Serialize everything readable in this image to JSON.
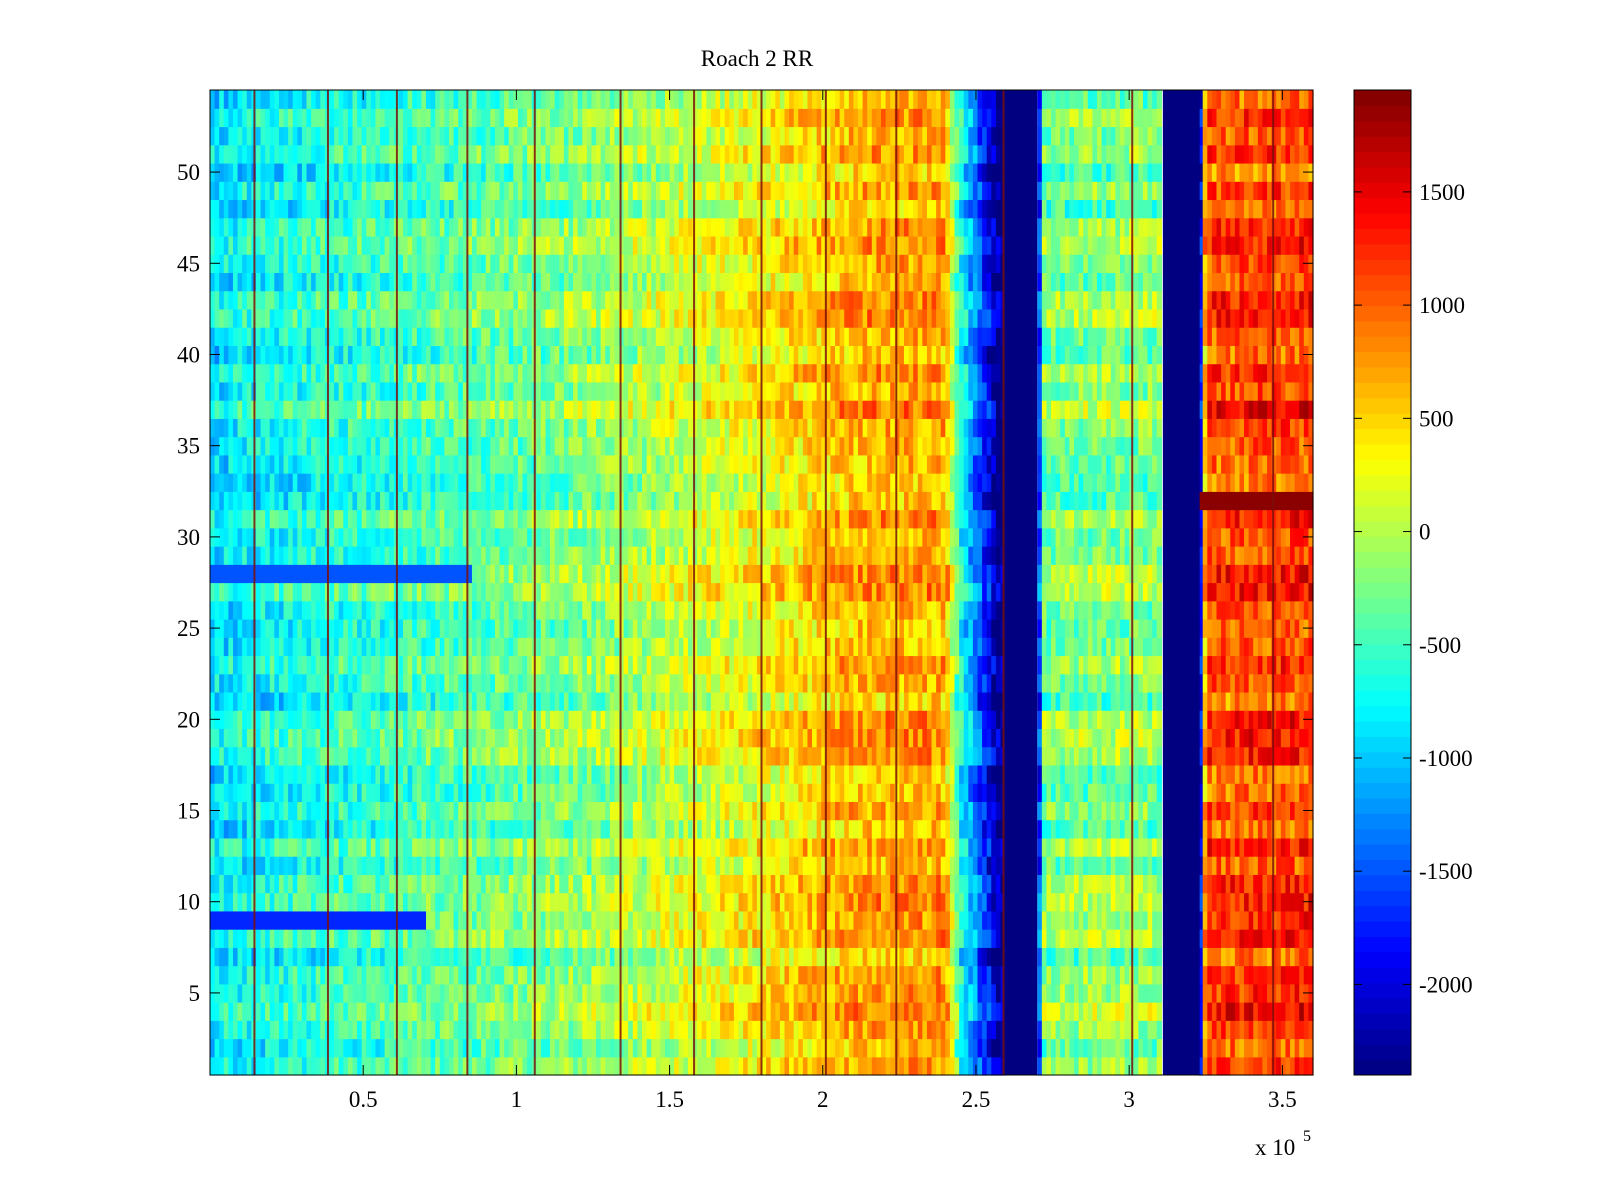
{
  "chart_data": {
    "type": "heatmap",
    "title": "Roach 2 RR",
    "xlabel": "",
    "ylabel": "",
    "x_exponent_label": "x 10",
    "x_exponent_power": "5",
    "xlim": [
      0,
      3.6
    ],
    "ylim": [
      0.5,
      54.5
    ],
    "x_ticks": [
      0.5,
      1,
      1.5,
      2,
      2.5,
      3,
      3.5
    ],
    "x_tick_labels": [
      "0.5",
      "1",
      "1.5",
      "2",
      "2.5",
      "3",
      "3.5"
    ],
    "y_ticks": [
      5,
      10,
      15,
      20,
      25,
      30,
      35,
      40,
      45,
      50
    ],
    "y_tick_labels": [
      "5",
      "10",
      "15",
      "20",
      "25",
      "30",
      "35",
      "40",
      "45",
      "50"
    ],
    "rows": 54,
    "colormap": "jet",
    "clim": [
      -2400,
      1950
    ],
    "colorbar": {
      "ticks": [
        1500,
        1000,
        500,
        0,
        -500,
        -1000,
        -1500,
        -2000
      ],
      "tick_labels": [
        "1500",
        "1000",
        "500",
        "0",
        "-500",
        "-1000",
        "-1500",
        "-2000"
      ],
      "location": "right"
    },
    "column_profile": [
      {
        "x": 0.0,
        "value": -850
      },
      {
        "x": 0.3,
        "value": -650
      },
      {
        "x": 0.6,
        "value": -500
      },
      {
        "x": 0.9,
        "value": -350
      },
      {
        "x": 1.2,
        "value": -200
      },
      {
        "x": 1.5,
        "value": 50
      },
      {
        "x": 1.8,
        "value": 300
      },
      {
        "x": 2.1,
        "value": 650
      },
      {
        "x": 2.4,
        "value": 700
      },
      {
        "x": 2.45,
        "value": -700
      },
      {
        "x": 2.58,
        "value": -2400
      },
      {
        "x": 2.7,
        "value": -2400
      },
      {
        "x": 2.72,
        "value": -250
      },
      {
        "x": 3.1,
        "value": -200
      },
      {
        "x": 3.12,
        "value": -2400
      },
      {
        "x": 3.23,
        "value": -2400
      },
      {
        "x": 3.25,
        "value": 1050
      },
      {
        "x": 3.6,
        "value": 1150
      }
    ],
    "masked_bands": [
      {
        "x_start": 2.59,
        "x_end": 2.7,
        "value": -2400
      },
      {
        "x_start": 3.11,
        "x_end": 3.23,
        "value": -2400
      }
    ],
    "dark_red_lines_x": [
      0.145,
      0.385,
      0.61,
      0.84,
      1.06,
      1.34,
      1.58,
      1.8,
      2.01,
      2.24,
      2.59,
      3.01,
      3.47
    ],
    "notable_rows": [
      {
        "row": 32,
        "x_start": 3.23,
        "x_end": 3.6,
        "value": 1900
      },
      {
        "row": 28,
        "x_start": 0.0,
        "x_end": 0.85,
        "value": -1500
      },
      {
        "row": 9,
        "x_start": 0.0,
        "x_end": 0.7,
        "value": -1700
      }
    ],
    "grid": false
  }
}
